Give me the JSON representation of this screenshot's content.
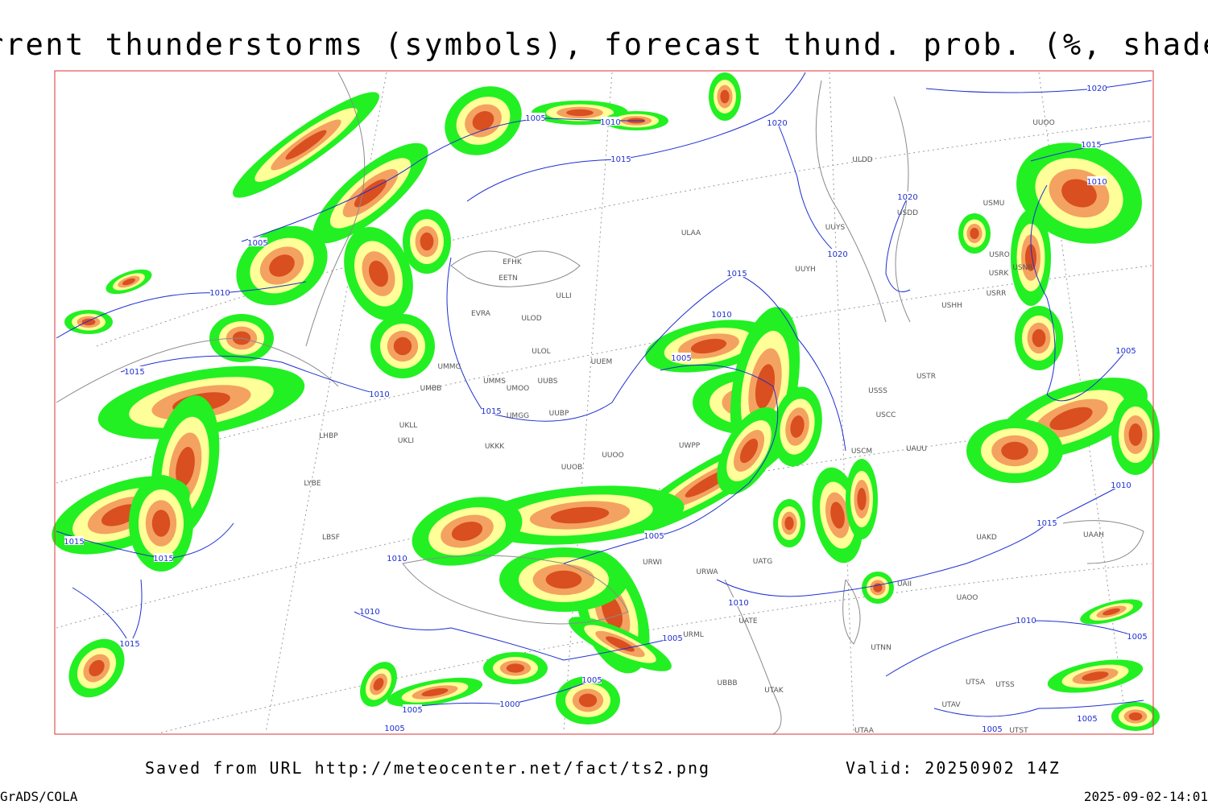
{
  "header": {
    "title": "Current thunderstorms (symbols), forecast thund. prob. (%, shaded)"
  },
  "map": {
    "isobar_labels": [
      1005,
      1010,
      1015,
      1020,
      1020,
      1015,
      1010,
      1020,
      1020,
      1005,
      1010,
      1015,
      1010,
      1015,
      1010,
      1005,
      1015,
      1015,
      1015,
      1010,
      1005,
      1010,
      1010,
      1015,
      1005,
      1005,
      1000,
      1005,
      1005,
      1005,
      1010,
      1015,
      1010,
      1005,
      1005,
      1005
    ],
    "station_labels": [
      "ULAA",
      "ULDD",
      "UUYS",
      "UUYH",
      "USDD",
      "USMU",
      "USRO",
      "USRK",
      "USNR",
      "USRR",
      "USHH",
      "UUOO",
      "EFHK",
      "EETN",
      "ULLI",
      "EVRA",
      "ULOD",
      "ULOL",
      "UUEM",
      "UMMG",
      "UMMS",
      "UMOO",
      "UUBS",
      "UMBB",
      "UKLL",
      "UKLI",
      "UMGG",
      "UUBP",
      "UKKK",
      "UUOO",
      "UUOB",
      "UWPP",
      "LHBP",
      "LYBE",
      "LBSF",
      "USSS",
      "USTR",
      "USCC",
      "USCM",
      "UAUU",
      "UATG",
      "URWA",
      "URWI",
      "UATE",
      "URML",
      "UBBB",
      "UTAK",
      "UTNN",
      "UAKD",
      "UAAH",
      "UAOO",
      "UAII",
      "UTSA",
      "UTSS",
      "UTAV",
      "UTST",
      "UTAA"
    ]
  },
  "footer": {
    "source": "Saved from URL http://meteocenter.net/fact/ts2.png",
    "valid": "Valid: 20250902 14Z",
    "software": "GrADS/COLA",
    "timestamp": "2025-09-02-14:01"
  }
}
